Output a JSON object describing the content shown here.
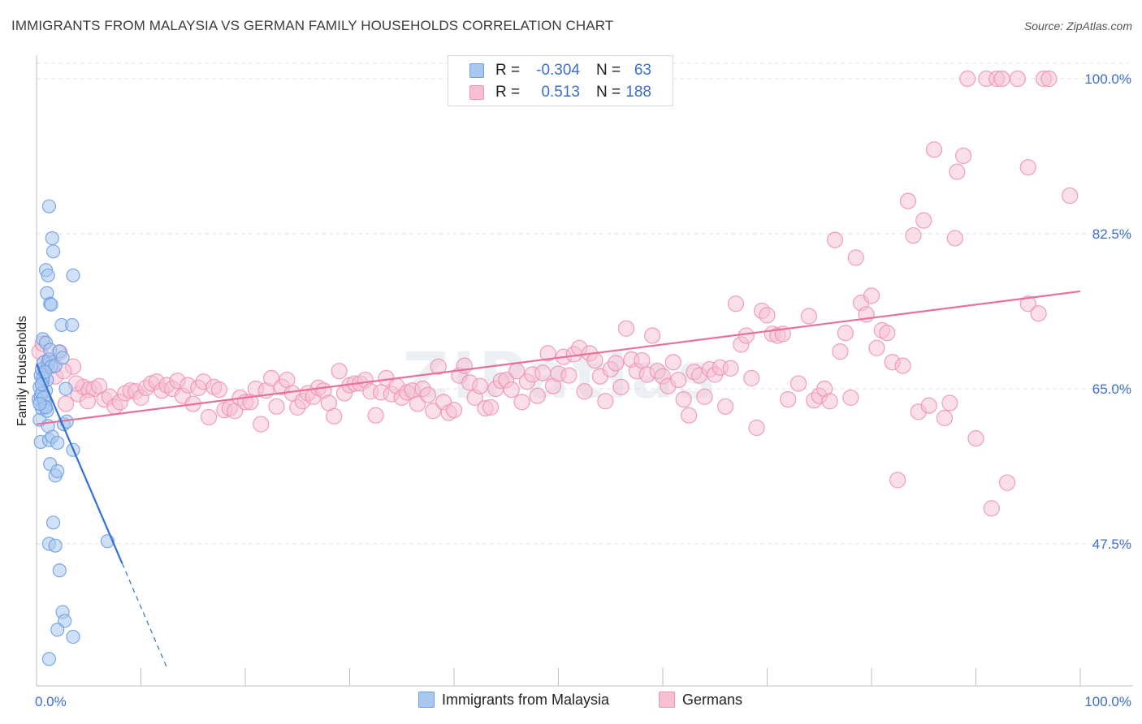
{
  "title": "IMMIGRANTS FROM MALAYSIA VS GERMAN FAMILY HOUSEHOLDS CORRELATION CHART",
  "source": "Source: ZipAtlas.com",
  "watermark": "ZIPatlas",
  "legend": {
    "rows": [
      {
        "r_label": "R =",
        "r_value": "-0.304",
        "n_label": "N =",
        "n_value": "63"
      },
      {
        "r_label": "R =",
        "r_value": "0.513",
        "n_label": "N =",
        "n_value": "188"
      }
    ]
  },
  "bottom_legend": {
    "malaysia": "Immigrants from Malaysia",
    "germans": "Germans"
  },
  "colors": {
    "blue_fill": "#a9c8f0",
    "blue_stroke": "#6f9fe0",
    "blue_line": "#2f73d6",
    "pink_fill": "#f6bfd2",
    "pink_stroke": "#ee94b4",
    "pink_line": "#e8709a",
    "tick_text": "#3a6fce",
    "grid": "#e2e2e2"
  },
  "chart_data": {
    "type": "scatter",
    "title": "IMMIGRANTS FROM MALAYSIA VS GERMAN FAMILY HOUSEHOLDS CORRELATION CHART",
    "xlabel": "Immigrants from Malaysia",
    "ylabel": "Family Households",
    "xlim": [
      0,
      100
    ],
    "ylim": [
      34,
      102
    ],
    "x_tick_labels": [
      "0.0%",
      "100.0%"
    ],
    "y_ticks": [
      47.5,
      65.0,
      82.5,
      100.0
    ],
    "y_tick_labels": [
      "47.5%",
      "65.0%",
      "82.5%",
      "100.0%"
    ],
    "grid": true,
    "legend_position": "top-center",
    "series": [
      {
        "name": "Immigrants from Malaysia",
        "R": -0.304,
        "N": 63,
        "trend": {
          "x0": 0.0,
          "y0": 67.8,
          "x1": 12.5,
          "y1": 33.5,
          "solid_until_x": 8.2
        },
        "points": [
          [
            0.2,
            63.8
          ],
          [
            0.3,
            61.5
          ],
          [
            0.4,
            64.2
          ],
          [
            0.5,
            62.8
          ],
          [
            0.4,
            66.5
          ],
          [
            0.6,
            65.8
          ],
          [
            0.5,
            67.2
          ],
          [
            0.7,
            68.0
          ],
          [
            0.8,
            63.5
          ],
          [
            0.9,
            64.8
          ],
          [
            1.0,
            66.0
          ],
          [
            1.1,
            67.8
          ],
          [
            1.2,
            68.3
          ],
          [
            0.6,
            70.6
          ],
          [
            0.9,
            70.2
          ],
          [
            1.3,
            69.4
          ],
          [
            0.3,
            65.2
          ],
          [
            0.5,
            64.5
          ],
          [
            0.4,
            59.0
          ],
          [
            1.2,
            59.2
          ],
          [
            1.5,
            59.6
          ],
          [
            0.8,
            63.0
          ],
          [
            1.0,
            62.5
          ],
          [
            1.4,
            67.5
          ],
          [
            1.8,
            67.6
          ],
          [
            2.2,
            69.2
          ],
          [
            2.5,
            68.5
          ],
          [
            2.8,
            65.0
          ],
          [
            2.6,
            61.0
          ],
          [
            2.9,
            61.3
          ],
          [
            3.5,
            58.1
          ],
          [
            2.0,
            58.9
          ],
          [
            1.3,
            56.5
          ],
          [
            1.8,
            55.2
          ],
          [
            2.0,
            55.7
          ],
          [
            1.6,
            49.9
          ],
          [
            1.2,
            47.5
          ],
          [
            1.8,
            47.3
          ],
          [
            2.2,
            44.5
          ],
          [
            2.5,
            39.8
          ],
          [
            2.7,
            38.8
          ],
          [
            2.0,
            37.8
          ],
          [
            3.5,
            37.0
          ],
          [
            1.2,
            34.5
          ],
          [
            6.8,
            47.8
          ],
          [
            1.2,
            85.6
          ],
          [
            1.5,
            82.0
          ],
          [
            1.6,
            80.5
          ],
          [
            0.9,
            78.4
          ],
          [
            1.1,
            77.8
          ],
          [
            3.5,
            77.8
          ],
          [
            1.0,
            75.8
          ],
          [
            1.3,
            74.6
          ],
          [
            1.4,
            74.5
          ],
          [
            2.4,
            72.2
          ],
          [
            3.4,
            72.2
          ],
          [
            0.6,
            66.2
          ],
          [
            0.7,
            64.0
          ],
          [
            0.9,
            62.9
          ],
          [
            1.1,
            60.8
          ],
          [
            0.3,
            63.3
          ],
          [
            0.5,
            65.5
          ],
          [
            0.8,
            66.9
          ]
        ]
      },
      {
        "name": "Germans",
        "R": 0.513,
        "N": 188,
        "trend": {
          "x0": 0.0,
          "y0": 61.0,
          "x1": 100.0,
          "y1": 76.0
        },
        "points": [
          [
            0.3,
            69.2
          ],
          [
            0.6,
            70.1
          ],
          [
            1.2,
            68.2
          ],
          [
            1.5,
            67.6
          ],
          [
            2.2,
            69.1
          ],
          [
            2.8,
            63.3
          ],
          [
            3.5,
            67.5
          ],
          [
            4.0,
            64.4
          ],
          [
            4.5,
            65.2
          ],
          [
            5.0,
            64.9
          ],
          [
            5.5,
            65.0
          ],
          [
            6.0,
            65.3
          ],
          [
            6.5,
            63.8
          ],
          [
            7.0,
            64.1
          ],
          [
            7.5,
            63.0
          ],
          [
            8.0,
            63.5
          ],
          [
            8.5,
            64.5
          ],
          [
            9.0,
            64.8
          ],
          [
            9.5,
            64.7
          ],
          [
            10.0,
            64.0
          ],
          [
            10.5,
            65.1
          ],
          [
            11.0,
            65.6
          ],
          [
            11.5,
            65.8
          ],
          [
            12.0,
            64.8
          ],
          [
            12.5,
            65.4
          ],
          [
            13.0,
            65.0
          ],
          [
            13.5,
            65.9
          ],
          [
            14.0,
            64.2
          ],
          [
            14.5,
            65.4
          ],
          [
            15.0,
            63.3
          ],
          [
            15.5,
            65.1
          ],
          [
            16.0,
            65.8
          ],
          [
            16.5,
            61.8
          ],
          [
            17.0,
            65.2
          ],
          [
            17.5,
            64.9
          ],
          [
            18.0,
            62.6
          ],
          [
            18.5,
            62.8
          ],
          [
            19.0,
            62.5
          ],
          [
            19.5,
            64.0
          ],
          [
            20.0,
            63.5
          ],
          [
            20.5,
            63.5
          ],
          [
            21.0,
            65.0
          ],
          [
            21.5,
            61.0
          ],
          [
            22.0,
            64.8
          ],
          [
            22.5,
            66.2
          ],
          [
            23.0,
            63.0
          ],
          [
            23.5,
            65.2
          ],
          [
            24.0,
            66.0
          ],
          [
            24.5,
            64.5
          ],
          [
            25.0,
            62.9
          ],
          [
            25.5,
            63.6
          ],
          [
            26.0,
            64.5
          ],
          [
            26.5,
            64.1
          ],
          [
            27.0,
            65.1
          ],
          [
            27.5,
            64.8
          ],
          [
            28.0,
            63.4
          ],
          [
            28.5,
            61.9
          ],
          [
            29.0,
            67.0
          ],
          [
            29.5,
            64.5
          ],
          [
            30.0,
            65.4
          ],
          [
            30.5,
            65.6
          ],
          [
            31.0,
            65.6
          ],
          [
            31.5,
            66.0
          ],
          [
            32.0,
            64.7
          ],
          [
            32.5,
            62.0
          ],
          [
            33.0,
            64.6
          ],
          [
            33.5,
            66.2
          ],
          [
            34.0,
            64.4
          ],
          [
            34.5,
            65.3
          ],
          [
            35.0,
            64.0
          ],
          [
            35.5,
            64.6
          ],
          [
            36.0,
            64.8
          ],
          [
            36.5,
            63.3
          ],
          [
            37.0,
            65.0
          ],
          [
            37.5,
            64.3
          ],
          [
            38.0,
            62.5
          ],
          [
            38.5,
            67.5
          ],
          [
            39.0,
            63.5
          ],
          [
            39.5,
            62.3
          ],
          [
            40.0,
            62.6
          ],
          [
            40.5,
            66.5
          ],
          [
            41.0,
            67.6
          ],
          [
            41.5,
            65.7
          ],
          [
            42.0,
            64.0
          ],
          [
            42.5,
            65.3
          ],
          [
            43.0,
            62.8
          ],
          [
            43.5,
            62.9
          ],
          [
            44.0,
            65.0
          ],
          [
            44.5,
            65.9
          ],
          [
            45.0,
            66.0
          ],
          [
            45.5,
            64.9
          ],
          [
            46.0,
            67.0
          ],
          [
            46.5,
            63.5
          ],
          [
            47.0,
            65.8
          ],
          [
            47.5,
            66.6
          ],
          [
            48.0,
            64.2
          ],
          [
            48.5,
            66.8
          ],
          [
            49.0,
            69.0
          ],
          [
            49.5,
            65.3
          ],
          [
            50.0,
            66.7
          ],
          [
            50.5,
            68.6
          ],
          [
            51.0,
            66.5
          ],
          [
            51.5,
            68.9
          ],
          [
            52.0,
            69.6
          ],
          [
            52.5,
            64.7
          ],
          [
            53.0,
            69.0
          ],
          [
            53.5,
            68.2
          ],
          [
            54.0,
            66.4
          ],
          [
            54.5,
            63.6
          ],
          [
            55.0,
            67.2
          ],
          [
            55.5,
            67.9
          ],
          [
            56.0,
            65.2
          ],
          [
            56.5,
            71.8
          ],
          [
            57.0,
            68.3
          ],
          [
            57.5,
            67.0
          ],
          [
            58.0,
            68.2
          ],
          [
            58.5,
            66.6
          ],
          [
            59.0,
            71.0
          ],
          [
            59.5,
            67.0
          ],
          [
            60.0,
            66.4
          ],
          [
            60.5,
            65.3
          ],
          [
            61.0,
            68.0
          ],
          [
            61.5,
            66.0
          ],
          [
            62.0,
            63.8
          ],
          [
            62.5,
            62.0
          ],
          [
            63.0,
            66.9
          ],
          [
            63.5,
            66.5
          ],
          [
            64.0,
            64.1
          ],
          [
            64.5,
            67.2
          ],
          [
            65.0,
            66.6
          ],
          [
            65.5,
            67.4
          ],
          [
            66.0,
            63.0
          ],
          [
            66.5,
            67.3
          ],
          [
            67.0,
            74.6
          ],
          [
            67.5,
            70.0
          ],
          [
            68.0,
            71.0
          ],
          [
            68.5,
            66.2
          ],
          [
            69.0,
            60.6
          ],
          [
            69.5,
            73.8
          ],
          [
            70.0,
            73.3
          ],
          [
            70.5,
            71.2
          ],
          [
            71.0,
            71.0
          ],
          [
            71.5,
            71.2
          ],
          [
            72.0,
            63.8
          ],
          [
            73.0,
            65.6
          ],
          [
            74.0,
            73.2
          ],
          [
            74.5,
            63.7
          ],
          [
            75.0,
            64.2
          ],
          [
            75.5,
            65.0
          ],
          [
            76.0,
            63.6
          ],
          [
            76.5,
            81.8
          ],
          [
            77.0,
            69.2
          ],
          [
            77.5,
            71.3
          ],
          [
            78.0,
            64.0
          ],
          [
            78.5,
            79.8
          ],
          [
            79.0,
            74.7
          ],
          [
            79.5,
            73.4
          ],
          [
            80.0,
            75.5
          ],
          [
            80.5,
            69.6
          ],
          [
            81.0,
            71.6
          ],
          [
            81.5,
            71.3
          ],
          [
            82.0,
            68.0
          ],
          [
            82.5,
            54.7
          ],
          [
            83.0,
            67.6
          ],
          [
            83.5,
            86.2
          ],
          [
            84.0,
            82.3
          ],
          [
            84.5,
            62.4
          ],
          [
            85.0,
            84.0
          ],
          [
            85.5,
            63.1
          ],
          [
            86.0,
            92.0
          ],
          [
            87.0,
            61.7
          ],
          [
            87.5,
            63.4
          ],
          [
            88.0,
            82.0
          ],
          [
            88.2,
            89.5
          ],
          [
            88.8,
            91.3
          ],
          [
            89.2,
            100.0
          ],
          [
            90.0,
            59.4
          ],
          [
            91.0,
            100.0
          ],
          [
            91.5,
            51.5
          ],
          [
            92.0,
            100.0
          ],
          [
            92.5,
            100.0
          ],
          [
            93.0,
            54.4
          ],
          [
            94.0,
            100.0
          ],
          [
            95.0,
            90.0
          ],
          [
            96.5,
            100.0
          ],
          [
            97.0,
            100.0
          ],
          [
            99.0,
            86.8
          ],
          [
            95.0,
            74.6
          ],
          [
            96.0,
            73.5
          ],
          [
            0.9,
            67.5
          ],
          [
            1.8,
            66.4
          ],
          [
            2.6,
            67.0
          ],
          [
            3.8,
            65.6
          ],
          [
            4.9,
            63.6
          ]
        ]
      }
    ]
  }
}
